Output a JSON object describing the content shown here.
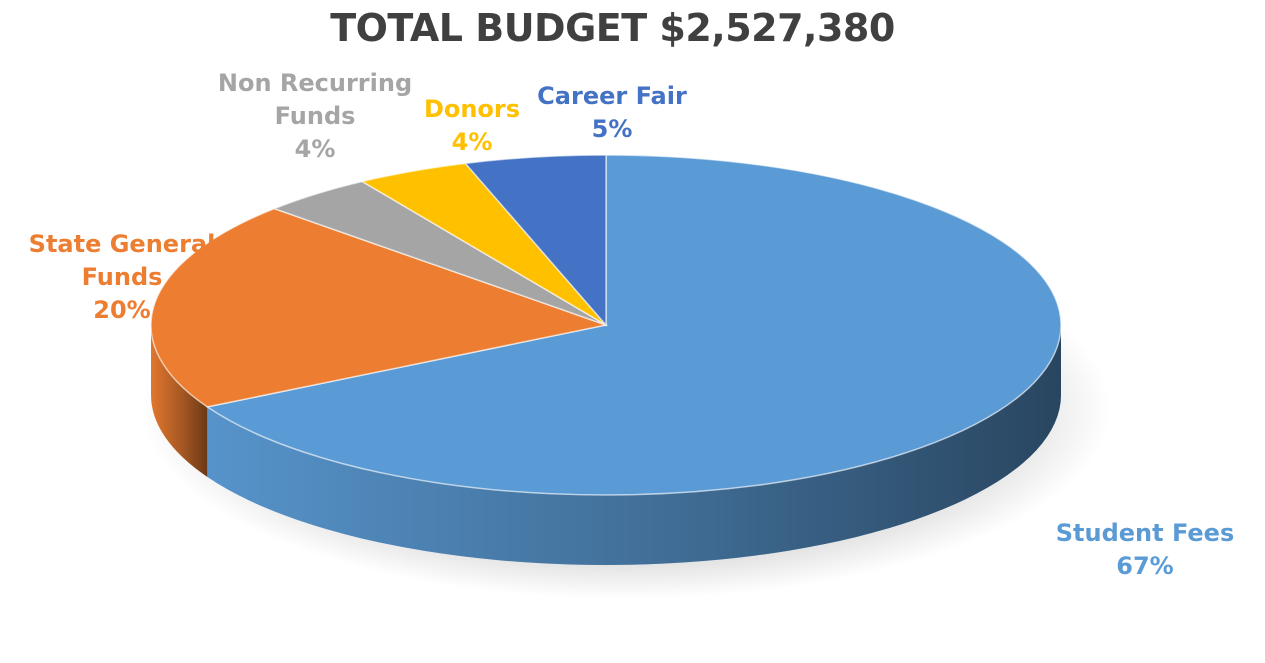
{
  "chart_data": {
    "type": "pie",
    "title": "TOTAL BUDGET $2,527,380",
    "slices": [
      {
        "name": "Student Fees",
        "value": 67,
        "value_label": "67%",
        "color": "#5B9BD5",
        "label_lines": [
          "Student Fees"
        ]
      },
      {
        "name": "State General Funds",
        "value": 20,
        "value_label": "20%",
        "color": "#ED7D31",
        "label_lines": [
          "State General",
          "Funds"
        ]
      },
      {
        "name": "Non Recurring Funds",
        "value": 4,
        "value_label": "4%",
        "color": "#A5A5A5",
        "label_lines": [
          "Non Recurring",
          "Funds"
        ]
      },
      {
        "name": "Donors",
        "value": 4,
        "value_label": "4%",
        "color": "#FFC000",
        "label_lines": [
          "Donors"
        ]
      },
      {
        "name": "Career Fair",
        "value": 5,
        "value_label": "5%",
        "color": "#4472C4",
        "label_lines": [
          "Career Fair"
        ]
      }
    ],
    "style": "3d-pie",
    "legend": "none",
    "data_labels": "outside"
  }
}
